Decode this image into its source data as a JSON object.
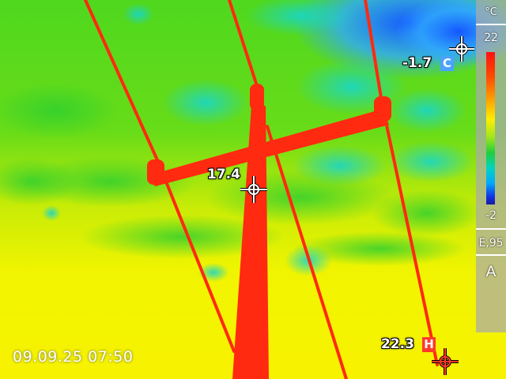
{
  "colors": {
    "hot": "#ff2a10",
    "cold_tag": "#4aa3ff",
    "hot_tag": "#ff3a2a"
  },
  "measurements": {
    "center": {
      "value": "17.4"
    },
    "cold": {
      "value": "-1.7",
      "tag": "C"
    },
    "hot": {
      "value": "22.3",
      "tag": "H"
    }
  },
  "palette": {
    "unit": "°C",
    "max": "22",
    "min": "-2",
    "emissivity": "E,95",
    "mode": "A"
  },
  "timestamp": "09.09.25 07:50",
  "icons": [
    "crosshair-icon",
    "colorbar-icon"
  ]
}
